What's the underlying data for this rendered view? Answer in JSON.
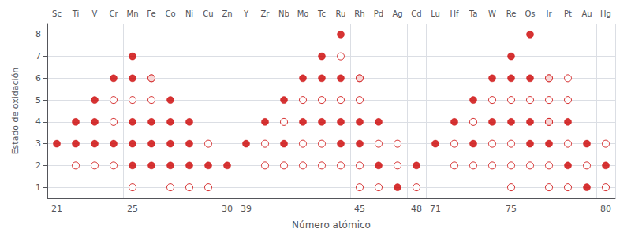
{
  "chart_data": {
    "type": "scatter",
    "xlabel": "Número atómico",
    "ylabel": "Estado de oxidación",
    "categories": [
      "21",
      null,
      null,
      null,
      "25",
      null,
      null,
      null,
      null,
      "30",
      "39",
      null,
      null,
      null,
      null,
      null,
      "45",
      null,
      null,
      "48",
      "71",
      null,
      null,
      null,
      "75",
      null,
      null,
      null,
      null,
      "80"
    ],
    "x2_categories": [
      "Sc",
      "Ti",
      "V",
      "Cr",
      "Mn",
      "Fe",
      "Co",
      "Ni",
      "Cu",
      "Zn",
      "Y",
      "Zr",
      "Nb",
      "Mo",
      "Tc",
      "Ru",
      "Rh",
      "Pd",
      "Ag",
      "Cd",
      "Lu",
      "Hf",
      "Ta",
      "W",
      "Re",
      "Os",
      "Ir",
      "Pt",
      "Au",
      "Hg"
    ],
    "ylim": [
      0.5,
      8.5
    ],
    "yticks": [
      1,
      2,
      3,
      4,
      5,
      6,
      7,
      8
    ],
    "grid": true,
    "series": [
      {
        "marker": "filled_circle",
        "color": "#cc0000",
        "values": [
          [
            3
          ],
          [
            3,
            4
          ],
          [
            3,
            4,
            5
          ],
          [
            3,
            6
          ],
          [
            2,
            3,
            4,
            6,
            7
          ],
          [
            2,
            3,
            4,
            6
          ],
          [
            2,
            3,
            4,
            5
          ],
          [
            2,
            3,
            4
          ],
          [
            2
          ],
          [
            2
          ],
          [
            3
          ],
          [
            4
          ],
          [
            3,
            5
          ],
          [
            4,
            6
          ],
          [
            4,
            6,
            7
          ],
          [
            3,
            4,
            6,
            8
          ],
          [
            3,
            4,
            6
          ],
          [
            2,
            4
          ],
          [
            1
          ],
          [
            2
          ],
          [
            3
          ],
          [
            4
          ],
          [
            3,
            5
          ],
          [
            4,
            6
          ],
          [
            4,
            6,
            7
          ],
          [
            3,
            4,
            6,
            8
          ],
          [
            3,
            4,
            6
          ],
          [
            2,
            4
          ],
          [
            1,
            3
          ],
          [
            2
          ]
        ]
      },
      {
        "marker": "open_circle",
        "color": "#cc0000",
        "values": [
          [],
          [
            2
          ],
          [
            2
          ],
          [
            2,
            4,
            5
          ],
          [
            1,
            5
          ],
          [
            5,
            6
          ],
          [
            1
          ],
          [
            1
          ],
          [
            1,
            3
          ],
          [],
          [],
          [
            2,
            3
          ],
          [
            2,
            4
          ],
          [
            2,
            3,
            5
          ],
          [
            2,
            3,
            5
          ],
          [
            2,
            5,
            7
          ],
          [
            1,
            2,
            5,
            6
          ],
          [
            1,
            3
          ],
          [
            2,
            3
          ],
          [
            1
          ],
          [],
          [
            2,
            3
          ],
          [
            2,
            4
          ],
          [
            2,
            3,
            5
          ],
          [
            1,
            2,
            3,
            5
          ],
          [
            2,
            5
          ],
          [
            1,
            2,
            4,
            5,
            6
          ],
          [
            1,
            3,
            5,
            6
          ],
          [
            2
          ],
          [
            1,
            3
          ]
        ]
      }
    ]
  }
}
